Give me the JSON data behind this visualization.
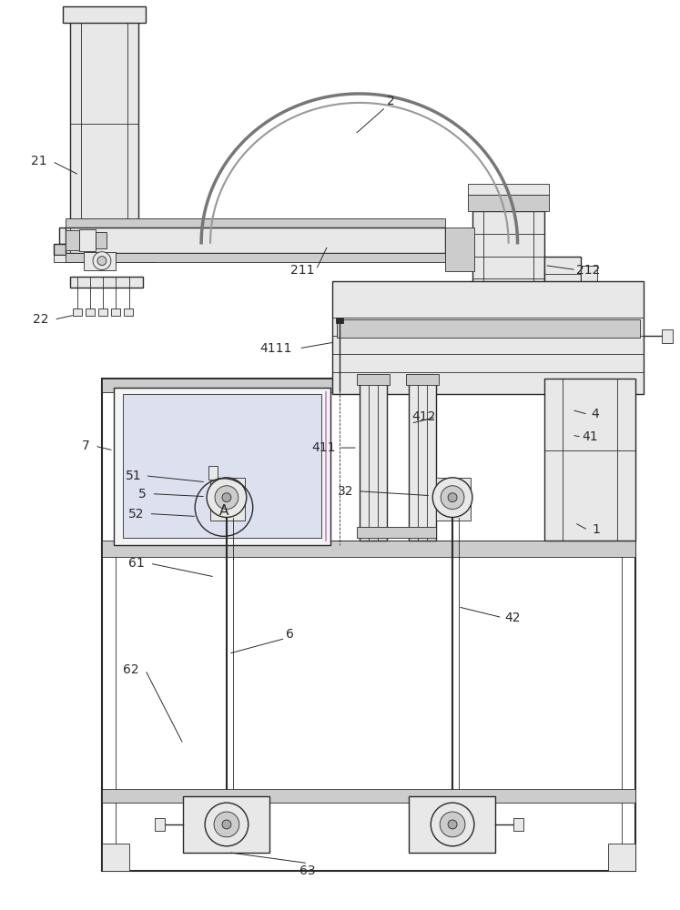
{
  "bg_color": "#ffffff",
  "lc": "#2a2a2a",
  "fc_light": "#e8e8e8",
  "fc_mid": "#cccccc",
  "fc_dark": "#aaaaaa",
  "fc_blue": "#dde0ee",
  "lw_main": 1.0,
  "lw_thick": 1.5,
  "lw_thin": 0.6,
  "figsize": [
    7.47,
    10.0
  ],
  "dpi": 100
}
